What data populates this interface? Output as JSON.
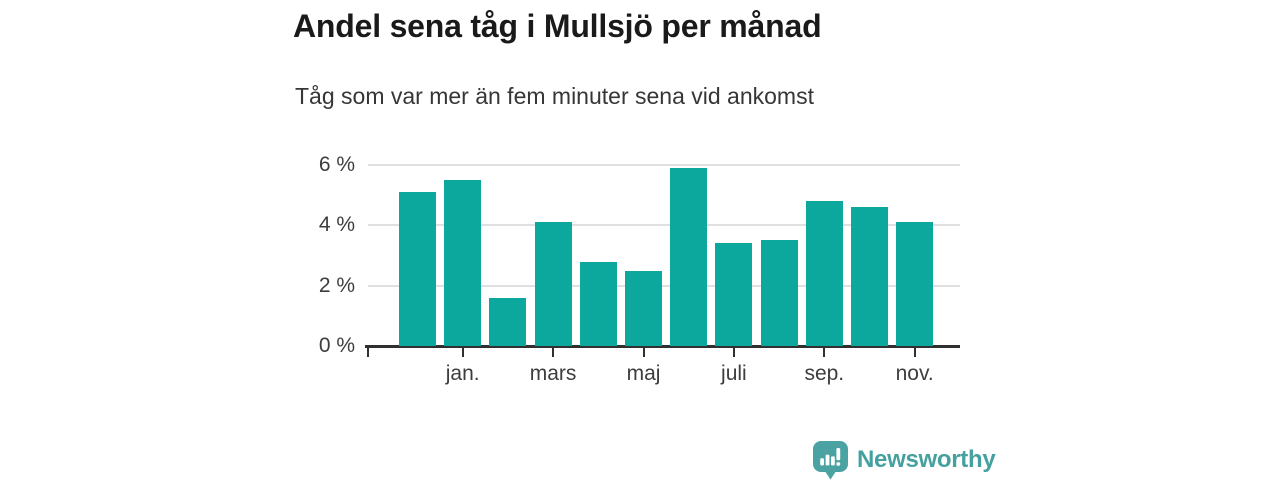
{
  "header": {
    "title": "Andel sena tåg i Mullsjö per månad",
    "subtitle": "Tåg som var mer än fem minuter sena vid ankomst"
  },
  "chart_data": {
    "type": "bar",
    "title": "Andel sena tåg i Mullsjö per månad",
    "subtitle": "Tåg som var mer än fem minuter sena vid ankomst",
    "unit": "%",
    "ylim": [
      0,
      6
    ],
    "grid": true,
    "legend": "none",
    "bar_color": "#0ca89e",
    "values": [
      5.1,
      5.5,
      1.6,
      4.1,
      2.8,
      2.5,
      5.9,
      3.4,
      3.5,
      4.8,
      4.6,
      4.1
    ],
    "y_ticks": [
      {
        "label": "0 %",
        "value": 0
      },
      {
        "label": "2 %",
        "value": 2
      },
      {
        "label": "4 %",
        "value": 4
      },
      {
        "label": "6 %",
        "value": 6
      }
    ],
    "x_ticks": [
      {
        "label": "jan.",
        "bar_index": 1
      },
      {
        "label": "mars",
        "bar_index": 3
      },
      {
        "label": "maj",
        "bar_index": 5
      },
      {
        "label": "juli",
        "bar_index": 7
      },
      {
        "label": "sep.",
        "bar_index": 9
      },
      {
        "label": "nov.",
        "bar_index": 11
      }
    ]
  },
  "footer": {
    "brand": "Newsworthy",
    "brand_color": "#45a1a0",
    "logo_icon": "newsworthy-speech-bubble-bar-chart-icon"
  }
}
